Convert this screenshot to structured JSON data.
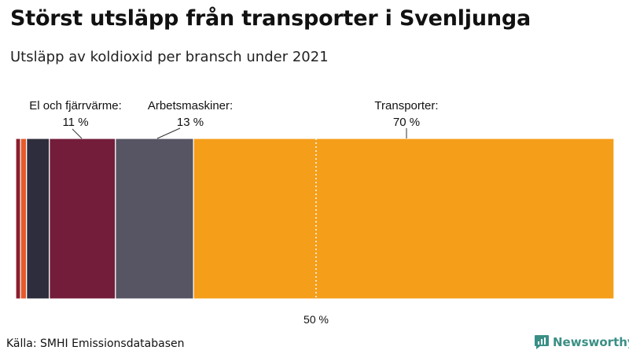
{
  "header": {
    "title": "Störst utsläpp från transporter i Svenljunga",
    "subtitle": "Utsläpp av koldioxid per bransch under 2021"
  },
  "footer": {
    "source": "Källa: SMHI Emissionsdatabasen",
    "brand": "Newsworthy"
  },
  "colors": {
    "brand": "#3a8f85"
  },
  "chart_data": {
    "type": "bar",
    "orientation": "horizontal-stacked-100",
    "unit": "%",
    "segments": [
      {
        "value": 0.8,
        "color": "#8b1e2d"
      },
      {
        "value": 1.0,
        "color": "#e55a2b"
      },
      {
        "value": 3.8,
        "color": "#2e2d3d"
      },
      {
        "name": "El och fjärrvärme",
        "value": 11,
        "label": "El och fjärrvärme:",
        "value_label": "11 %",
        "color": "#741d3a"
      },
      {
        "name": "Arbetsmaskiner",
        "value": 13,
        "label": "Arbetsmaskiner:",
        "value_label": "13 %",
        "color": "#575563"
      },
      {
        "name": "Transporter",
        "value": 70,
        "label": "Transporter:",
        "value_label": "70 %",
        "color": "#f59e1a"
      }
    ],
    "reference_line": {
      "value": 50,
      "label": "50 %",
      "style": "dotted"
    },
    "xlim": [
      0,
      100
    ]
  }
}
